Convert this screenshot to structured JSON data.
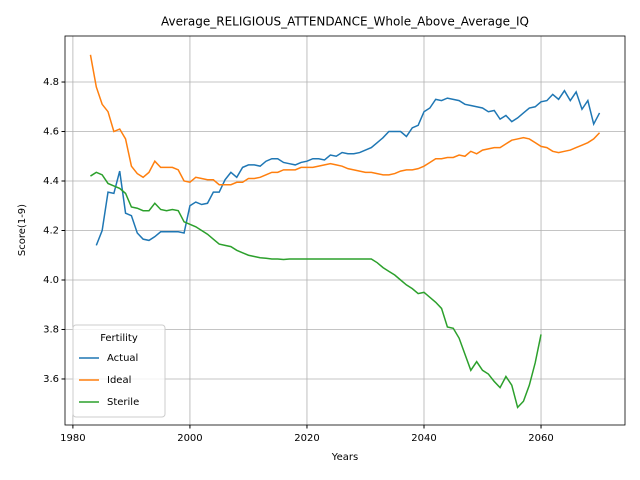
{
  "chart_data": {
    "type": "line",
    "title": "Average_RELIGIOUS_ATTENDANCE_Whole_Above_Average_IQ",
    "x_label": "Years",
    "y_label": "Score(1-9)",
    "legend_title": "Fertility",
    "legend": "lower left",
    "grid": true,
    "x": [
      1983,
      1984,
      1985,
      1986,
      1987,
      1988,
      1989,
      1990,
      1991,
      1992,
      1993,
      1994,
      1995,
      1996,
      1997,
      1998,
      1999,
      2000,
      2001,
      2002,
      2003,
      2004,
      2005,
      2006,
      2007,
      2008,
      2009,
      2010,
      2011,
      2012,
      2013,
      2014,
      2015,
      2016,
      2017,
      2018,
      2019,
      2020,
      2021,
      2022,
      2023,
      2024,
      2025,
      2026,
      2027,
      2028,
      2029,
      2030,
      2031,
      2032,
      2033,
      2034,
      2035,
      2036,
      2037,
      2038,
      2039,
      2040,
      2041,
      2042,
      2043,
      2044,
      2045,
      2046,
      2047,
      2048,
      2049,
      2050,
      2051,
      2052,
      2053,
      2054,
      2055,
      2056,
      2057,
      2058,
      2059,
      2060,
      2061,
      2062,
      2063,
      2064,
      2065,
      2066,
      2067,
      2068,
      2069,
      2070
    ],
    "series": [
      {
        "name": "Actual",
        "color": "#1f77b4",
        "values": [
          null,
          4.14,
          4.2,
          4.355,
          4.35,
          4.44,
          4.27,
          4.26,
          4.19,
          4.165,
          4.16,
          4.175,
          4.195,
          4.195,
          4.195,
          4.195,
          4.19,
          4.3,
          4.315,
          4.305,
          4.31,
          4.355,
          4.355,
          4.405,
          4.435,
          4.415,
          4.455,
          4.465,
          4.465,
          4.46,
          4.48,
          4.49,
          4.49,
          4.475,
          4.47,
          4.465,
          4.475,
          4.48,
          4.49,
          4.49,
          4.485,
          4.505,
          4.5,
          4.515,
          4.51,
          4.51,
          4.515,
          4.525,
          4.535,
          4.555,
          4.575,
          4.6,
          4.6,
          4.6,
          4.58,
          4.615,
          4.625,
          4.68,
          4.695,
          4.73,
          4.725,
          4.735,
          4.73,
          4.725,
          4.71,
          4.705,
          4.7,
          4.695,
          4.68,
          4.685,
          4.65,
          4.665,
          4.64,
          4.655,
          4.675,
          4.695,
          4.7,
          4.72,
          4.725,
          4.75,
          4.73,
          4.765,
          4.725,
          4.76,
          4.69,
          4.725,
          4.63,
          4.675
        ]
      },
      {
        "name": "Ideal",
        "color": "#ff7f0e",
        "values": [
          4.91,
          4.78,
          4.71,
          4.68,
          4.6,
          4.61,
          4.57,
          4.46,
          4.43,
          4.415,
          4.435,
          4.48,
          4.455,
          4.455,
          4.455,
          4.445,
          4.4,
          4.395,
          4.415,
          4.41,
          4.405,
          4.405,
          4.385,
          4.385,
          4.385,
          4.395,
          4.395,
          4.41,
          4.41,
          4.415,
          4.425,
          4.435,
          4.435,
          4.445,
          4.445,
          4.445,
          4.455,
          4.455,
          4.455,
          4.46,
          4.465,
          4.47,
          4.465,
          4.46,
          4.45,
          4.445,
          4.44,
          4.435,
          4.435,
          4.43,
          4.425,
          4.425,
          4.43,
          4.44,
          4.445,
          4.445,
          4.45,
          4.46,
          4.475,
          4.49,
          4.49,
          4.495,
          4.495,
          4.505,
          4.5,
          4.52,
          4.51,
          4.525,
          4.53,
          4.535,
          4.535,
          4.55,
          4.565,
          4.57,
          4.575,
          4.57,
          4.555,
          4.54,
          4.535,
          4.52,
          4.515,
          4.52,
          4.525,
          4.535,
          4.545,
          4.555,
          4.57,
          4.595
        ]
      },
      {
        "name": "Sterile",
        "color": "#2ca02c",
        "values": [
          4.42,
          4.435,
          4.425,
          4.39,
          4.38,
          4.37,
          4.35,
          4.295,
          4.29,
          4.28,
          4.28,
          4.31,
          4.285,
          4.28,
          4.285,
          4.28,
          4.235,
          4.225,
          4.215,
          4.2,
          4.185,
          4.165,
          4.145,
          4.14,
          4.135,
          4.12,
          4.11,
          4.1,
          4.095,
          4.09,
          4.088,
          4.085,
          4.085,
          4.083,
          4.085,
          4.085,
          4.085,
          4.085,
          4.085,
          4.085,
          4.085,
          4.085,
          4.085,
          4.085,
          4.085,
          4.085,
          4.085,
          4.085,
          4.085,
          4.07,
          4.05,
          4.035,
          4.02,
          4,
          3.98,
          3.965,
          3.945,
          3.95,
          3.93,
          3.91,
          3.885,
          3.81,
          3.805,
          3.765,
          3.7,
          3.635,
          3.67,
          3.635,
          3.62,
          3.59,
          3.565,
          3.61,
          3.575,
          3.485,
          3.51,
          3.575,
          3.665,
          3.78,
          null,
          null,
          null,
          null,
          null,
          null,
          null,
          null,
          null,
          null
        ]
      }
    ],
    "xlim": [
      1978.65,
      2074.35
    ],
    "xticks": [
      1980,
      2000,
      2020,
      2040,
      2060
    ],
    "ylim": [
      3.414,
      4.986
    ],
    "yticks": [
      3.6,
      3.8,
      {
        "value": 4,
        "label": "4.0"
      },
      4.2,
      4.4,
      4.6,
      4.8
    ]
  }
}
